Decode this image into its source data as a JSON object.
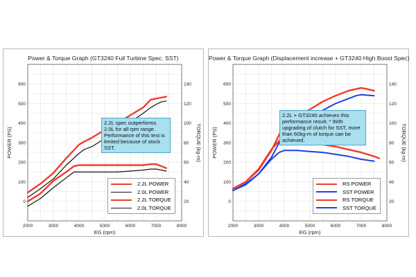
{
  "chart_data": [
    {
      "type": "line",
      "title": "Power & Torque Graph (GT3240 Full Turbine Spec. SST)",
      "xlabel": "EG (rpm)",
      "ylabel": "POWER (PS)",
      "y2label": "TORQUE (kg-m)",
      "xlim": [
        2000,
        8000
      ],
      "ylim": [
        -100,
        700
      ],
      "y2lim": [
        0,
        160
      ],
      "x_ticks": [
        "2000",
        "3000",
        "4000",
        "5000",
        "6000",
        "7000",
        "8000"
      ],
      "y_ticks": [
        "0",
        "100",
        "200",
        "300",
        "400",
        "500",
        "600"
      ],
      "y2_ticks": [
        "20",
        "40",
        "60",
        "80",
        "100",
        "120",
        "140"
      ],
      "grid": true,
      "legend_position": "bottom-right",
      "series": [
        {
          "name": "2.2L POWER",
          "axis": "left",
          "color": "#ee3b2e",
          "width": 2.4,
          "x": [
            2000,
            2500,
            3000,
            3500,
            4000,
            4200,
            4500,
            5000,
            5500,
            6000,
            6500,
            6800,
            7000,
            7200,
            7400
          ],
          "y": [
            45,
            90,
            145,
            220,
            290,
            305,
            325,
            365,
            400,
            440,
            480,
            520,
            525,
            530,
            535
          ]
        },
        {
          "name": "2.0L POWER",
          "axis": "left",
          "color": "#111111",
          "width": 1.2,
          "x": [
            2000,
            2500,
            3000,
            3500,
            4000,
            4200,
            4500,
            5000,
            5500,
            6000,
            6500,
            6800,
            7000,
            7200,
            7400
          ],
          "y": [
            20,
            65,
            115,
            185,
            245,
            265,
            280,
            320,
            360,
            405,
            450,
            480,
            495,
            508,
            513
          ]
        },
        {
          "name": "2.2L TORQUE",
          "axis": "right",
          "color": "#ee3b2e",
          "width": 2.4,
          "x": [
            2000,
            2500,
            3000,
            3500,
            3800,
            4000,
            4500,
            5000,
            5500,
            6000,
            6500,
            6800,
            7000,
            7200,
            7400
          ],
          "y": [
            20,
            28,
            41,
            50,
            56,
            57,
            57,
            57,
            57,
            57,
            57,
            58,
            58,
            56,
            54
          ]
        },
        {
          "name": "2.0L TORQUE",
          "axis": "right",
          "color": "#111111",
          "width": 1.2,
          "x": [
            2000,
            2500,
            3000,
            3500,
            3800,
            4000,
            4500,
            5000,
            5500,
            6000,
            6500,
            6800,
            7000,
            7200,
            7400
          ],
          "y": [
            15,
            23,
            34,
            44,
            50,
            50,
            50,
            50,
            50,
            51,
            52,
            53,
            53,
            52,
            51
          ]
        }
      ],
      "annotation": "2.2L spec outperforms 2.0L for all rpm range. Performance of this test is limited because of stock SST."
    },
    {
      "type": "line",
      "title": "Power & Torque Graph (Displacement increase + GT3240 High Boost Spec)",
      "xlabel": "EG (rpm)",
      "ylabel": "POWER (PS)",
      "y2label": "TORQUE (kg-m)",
      "xlim": [
        2000,
        8000
      ],
      "ylim": [
        -100,
        700
      ],
      "y2lim": [
        0,
        160
      ],
      "x_ticks": [
        "2000",
        "3000",
        "4000",
        "5000",
        "6000",
        "7000",
        "8000"
      ],
      "y_ticks": [
        "0",
        "100",
        "200",
        "300",
        "400",
        "500",
        "600"
      ],
      "y2_ticks": [
        "20",
        "40",
        "60",
        "80",
        "100",
        "120",
        "140"
      ],
      "grid": true,
      "legend_position": "bottom-right",
      "series": [
        {
          "name": "RS POWER",
          "axis": "left",
          "color": "#ee3b2e",
          "width": 2.4,
          "x": [
            2000,
            2500,
            3000,
            3500,
            3800,
            4000,
            4500,
            5000,
            5500,
            6000,
            6500,
            7000,
            7200,
            7500
          ],
          "y": [
            65,
            100,
            160,
            260,
            340,
            400,
            435,
            470,
            510,
            540,
            565,
            580,
            575,
            565
          ]
        },
        {
          "name": "SST POWER",
          "axis": "left",
          "color": "#1f3fe0",
          "width": 2.0,
          "x": [
            2000,
            2500,
            3000,
            3500,
            3800,
            4000,
            4500,
            5000,
            5500,
            6000,
            6500,
            6800,
            7000,
            7500
          ],
          "y": [
            55,
            90,
            140,
            225,
            300,
            350,
            380,
            420,
            465,
            500,
            525,
            540,
            545,
            540
          ]
        },
        {
          "name": "RS TORQUE",
          "axis": "right",
          "color": "#ee3b2e",
          "width": 2.4,
          "x": [
            2000,
            2500,
            3000,
            3500,
            3800,
            4000,
            4500,
            5000,
            5500,
            6000,
            6500,
            7000,
            7500,
            7700
          ],
          "y": [
            33,
            40,
            53,
            73,
            82,
            84,
            82,
            80,
            78,
            76,
            73,
            70,
            66,
            64
          ]
        },
        {
          "name": "SST TORQUE",
          "axis": "right",
          "color": "#1f3fe0",
          "width": 2.0,
          "x": [
            2000,
            2500,
            3000,
            3500,
            3800,
            4000,
            4500,
            5000,
            5500,
            6000,
            6500,
            7000,
            7500
          ],
          "y": [
            31,
            37,
            48,
            63,
            70,
            72,
            72,
            71,
            70,
            68,
            66,
            63,
            61
          ]
        }
      ],
      "annotation": "2.2L + GT3240 achieves this performance result. * With upgrading of clutch for SST, more than 60kg-m of torque can be achieved."
    }
  ]
}
